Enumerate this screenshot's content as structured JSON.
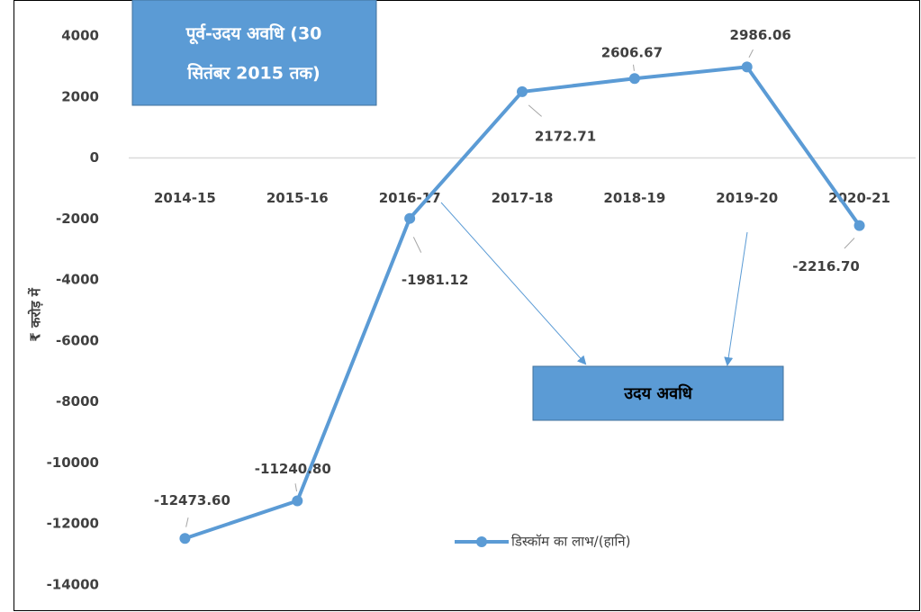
{
  "chart_data": {
    "type": "line",
    "annotations": [
      "पूर्व-उदय अवधि (30",
      "सितंबर 2015 तक)",
      "उदय अवधि"
    ],
    "y_label": "₹ करोड़ में",
    "categories": [
      "2014-15",
      "2015-16",
      "2016-17",
      "2017-18",
      "2018-19",
      "2019-20",
      "2020-21"
    ],
    "series": [
      {
        "name": "डिस्कॉम का लाभ/(हानि)",
        "color": "#5b9bd5",
        "values": [
          -12473.6,
          -11240.8,
          -1981.12,
          2172.71,
          2606.67,
          2986.06,
          -2216.7
        ],
        "value_labels": [
          "-12473.60",
          "-11240.80",
          "-1981.12",
          "2172.71",
          "2606.67",
          "2986.06",
          "-2216.70"
        ]
      }
    ],
    "ylim": [
      -14000,
      4000
    ],
    "yticks": [
      -14000,
      -12000,
      -10000,
      -8000,
      -6000,
      -4000,
      -2000,
      0,
      2000,
      4000
    ],
    "legend": "bottom"
  }
}
